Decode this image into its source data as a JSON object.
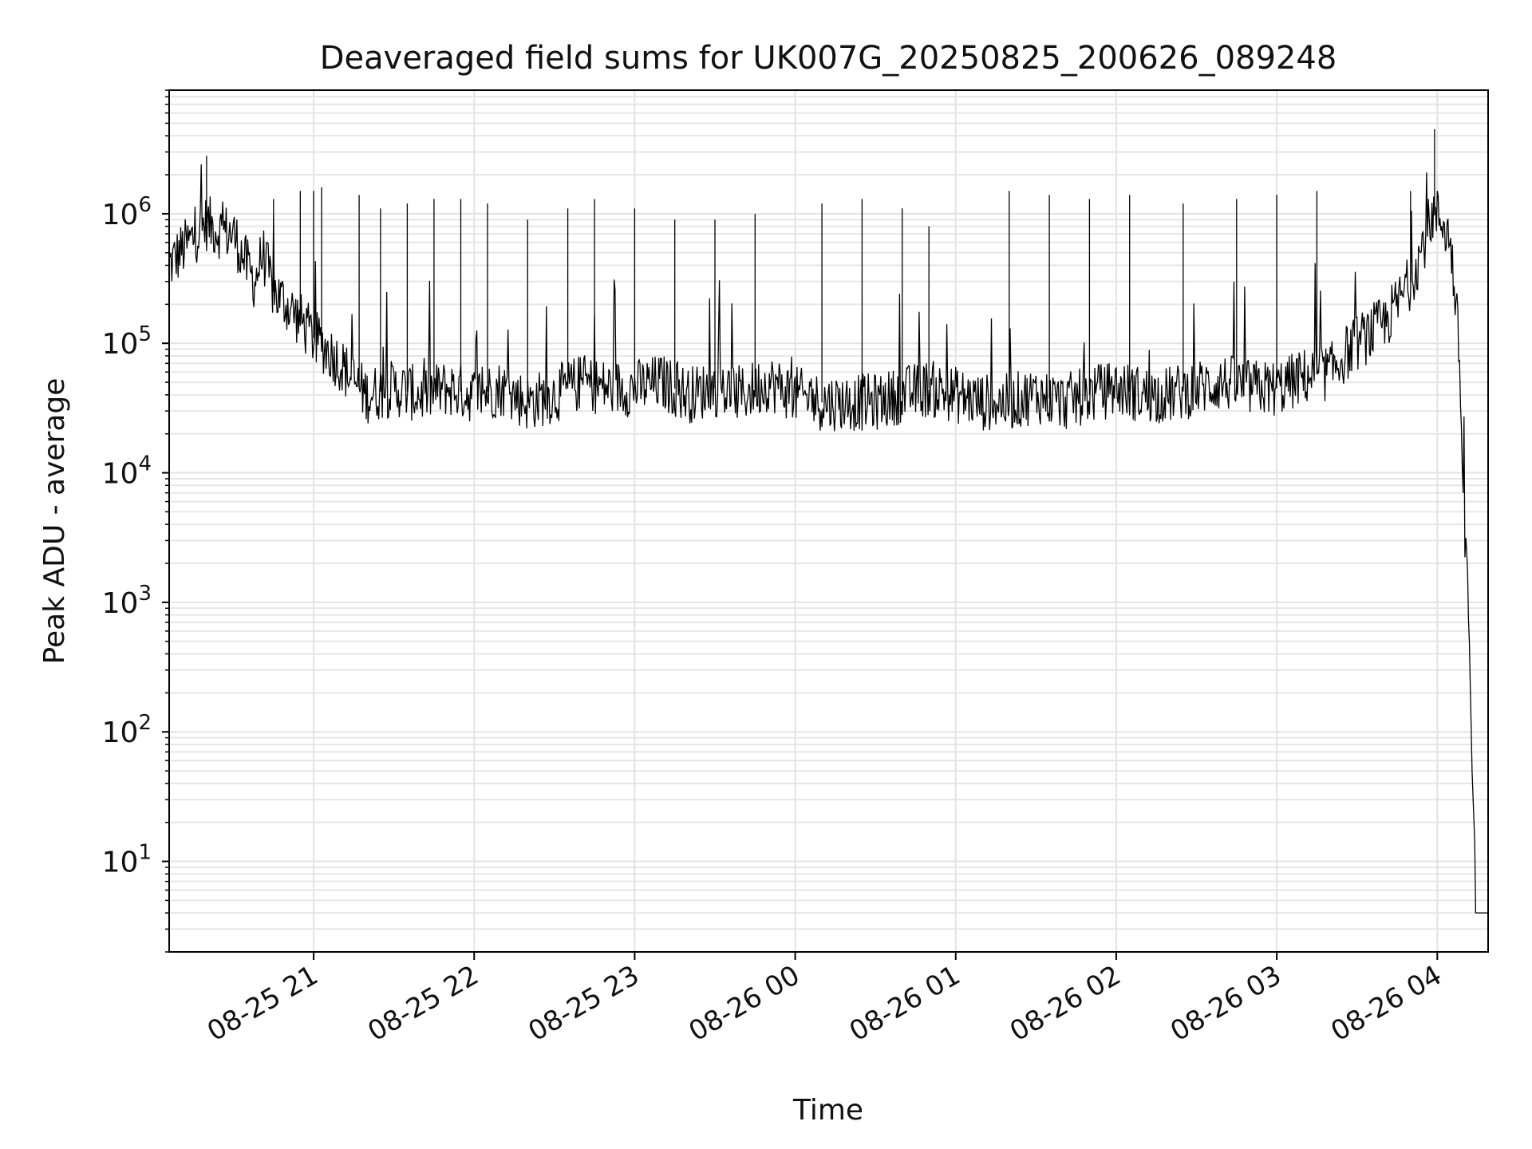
{
  "chart_data": {
    "type": "line",
    "title": "Deaveraged field sums for UK007G_20250825_200626_089248",
    "xlabel": "Time",
    "ylabel": "Peak ADU - average",
    "yscale": "log",
    "ylim": [
      2,
      9000000
    ],
    "xlim": [
      "2025-08-25 20:06",
      "2025-08-26 04:19"
    ],
    "grid": true,
    "x_ticks": [
      {
        "label": "08-25 21",
        "t": "2025-08-25 21:00"
      },
      {
        "label": "08-25 22",
        "t": "2025-08-25 22:00"
      },
      {
        "label": "08-25 23",
        "t": "2025-08-25 23:00"
      },
      {
        "label": "08-26 00",
        "t": "2025-08-26 00:00"
      },
      {
        "label": "08-26 01",
        "t": "2025-08-26 01:00"
      },
      {
        "label": "08-26 02",
        "t": "2025-08-26 02:00"
      },
      {
        "label": "08-26 03",
        "t": "2025-08-26 03:00"
      },
      {
        "label": "08-26 04",
        "t": "2025-08-26 04:00"
      }
    ],
    "y_ticks": [
      {
        "base": "10",
        "exp": "1",
        "value": 10
      },
      {
        "base": "10",
        "exp": "2",
        "value": 100
      },
      {
        "base": "10",
        "exp": "3",
        "value": 1000
      },
      {
        "base": "10",
        "exp": "4",
        "value": 10000
      },
      {
        "base": "10",
        "exp": "5",
        "value": 100000
      },
      {
        "base": "10",
        "exp": "6",
        "value": 1000000
      }
    ],
    "series": [
      {
        "color": "#000000",
        "x": [
          "2025-08-25 20:06",
          "2025-08-25 20:10",
          "2025-08-25 20:15",
          "2025-08-25 20:20",
          "2025-08-25 20:24",
          "2025-08-25 20:30",
          "2025-08-25 20:35",
          "2025-08-25 20:38",
          "2025-08-25 20:41",
          "2025-08-25 20:45",
          "2025-08-25 20:50",
          "2025-08-25 20:55",
          "2025-08-25 21:00",
          "2025-08-25 21:05",
          "2025-08-25 21:10",
          "2025-08-25 21:15",
          "2025-08-25 21:20",
          "2025-08-25 21:30",
          "2025-08-25 21:40",
          "2025-08-25 21:50",
          "2025-08-25 22:00",
          "2025-08-25 22:10",
          "2025-08-25 22:20",
          "2025-08-25 22:30",
          "2025-08-25 22:40",
          "2025-08-25 22:50",
          "2025-08-25 23:00",
          "2025-08-25 23:10",
          "2025-08-25 23:20",
          "2025-08-25 23:30",
          "2025-08-25 23:40",
          "2025-08-25 23:50",
          "2025-08-26 00:00",
          "2025-08-26 00:10",
          "2025-08-26 00:20",
          "2025-08-26 00:30",
          "2025-08-26 00:40",
          "2025-08-26 00:50",
          "2025-08-26 01:00",
          "2025-08-26 01:10",
          "2025-08-26 01:20",
          "2025-08-26 01:30",
          "2025-08-26 01:40",
          "2025-08-26 01:50",
          "2025-08-26 02:00",
          "2025-08-26 02:10",
          "2025-08-26 02:20",
          "2025-08-26 02:30",
          "2025-08-26 02:40",
          "2025-08-26 02:50",
          "2025-08-26 03:00",
          "2025-08-26 03:10",
          "2025-08-26 03:20",
          "2025-08-26 03:25",
          "2025-08-26 03:30",
          "2025-08-26 03:35",
          "2025-08-26 03:40",
          "2025-08-26 03:45",
          "2025-08-26 03:50",
          "2025-08-26 03:55",
          "2025-08-26 03:58",
          "2025-08-26 04:02",
          "2025-08-26 04:05",
          "2025-08-26 04:08",
          "2025-08-26 04:10",
          "2025-08-26 04:12",
          "2025-08-26 04:13",
          "2025-08-26 04:15",
          "2025-08-26 04:19"
        ],
        "y": [
          400000,
          500000,
          650000,
          850000,
          750000,
          700000,
          400000,
          300000,
          500000,
          250000,
          200000,
          150000,
          110000,
          90000,
          70000,
          50000,
          40000,
          45000,
          40000,
          45000,
          40000,
          45000,
          35000,
          40000,
          50000,
          45000,
          45000,
          50000,
          40000,
          45000,
          40000,
          50000,
          40000,
          35000,
          35000,
          35000,
          40000,
          45000,
          40000,
          35000,
          35000,
          40000,
          35000,
          40000,
          45000,
          40000,
          40000,
          45000,
          50000,
          45000,
          45000,
          55000,
          60000,
          80000,
          100000,
          120000,
          140000,
          200000,
          300000,
          600000,
          1000000,
          900000,
          600000,
          100000,
          5000,
          500,
          50,
          4,
          4
        ]
      }
    ],
    "spikes": [
      {
        "t": "2025-08-25 20:20",
        "v": 2800000
      },
      {
        "t": "2025-08-25 20:45",
        "v": 1300000
      },
      {
        "t": "2025-08-25 20:55",
        "v": 1500000
      },
      {
        "t": "2025-08-25 21:00",
        "v": 1500000
      },
      {
        "t": "2025-08-25 21:03",
        "v": 1600000
      },
      {
        "t": "2025-08-25 21:17",
        "v": 1400000
      },
      {
        "t": "2025-08-25 21:25",
        "v": 1100000
      },
      {
        "t": "2025-08-25 21:35",
        "v": 1200000
      },
      {
        "t": "2025-08-25 21:45",
        "v": 1300000
      },
      {
        "t": "2025-08-25 21:55",
        "v": 1300000
      },
      {
        "t": "2025-08-25 22:05",
        "v": 1200000
      },
      {
        "t": "2025-08-25 22:20",
        "v": 900000
      },
      {
        "t": "2025-08-25 22:35",
        "v": 1100000
      },
      {
        "t": "2025-08-25 22:45",
        "v": 1300000
      },
      {
        "t": "2025-08-25 23:00",
        "v": 1100000
      },
      {
        "t": "2025-08-25 23:15",
        "v": 900000
      },
      {
        "t": "2025-08-25 23:30",
        "v": 900000
      },
      {
        "t": "2025-08-25 23:45",
        "v": 1000000
      },
      {
        "t": "2025-08-26 00:10",
        "v": 1200000
      },
      {
        "t": "2025-08-26 00:25",
        "v": 1300000
      },
      {
        "t": "2025-08-26 00:40",
        "v": 1100000
      },
      {
        "t": "2025-08-26 00:50",
        "v": 800000
      },
      {
        "t": "2025-08-26 01:20",
        "v": 1500000
      },
      {
        "t": "2025-08-26 01:35",
        "v": 1400000
      },
      {
        "t": "2025-08-26 01:50",
        "v": 1300000
      },
      {
        "t": "2025-08-26 02:05",
        "v": 1400000
      },
      {
        "t": "2025-08-26 02:25",
        "v": 1200000
      },
      {
        "t": "2025-08-26 02:45",
        "v": 1300000
      },
      {
        "t": "2025-08-26 03:00",
        "v": 1400000
      },
      {
        "t": "2025-08-26 03:15",
        "v": 1500000
      },
      {
        "t": "2025-08-26 03:50",
        "v": 1500000
      },
      {
        "t": "2025-08-26 03:59",
        "v": 4500000
      }
    ]
  }
}
